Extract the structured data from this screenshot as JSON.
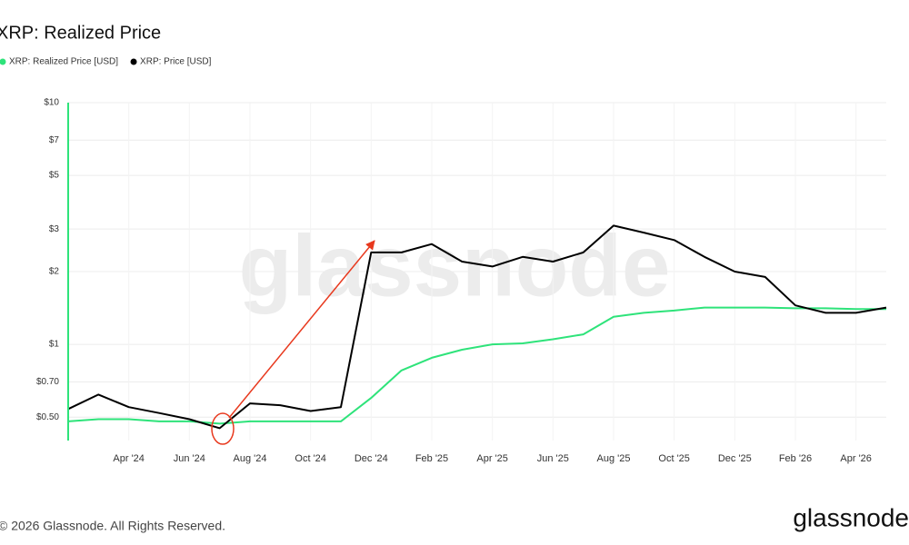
{
  "chart_data": {
    "type": "line",
    "title": "XRP: Realized Price",
    "x": [
      "2024-02",
      "2024-03",
      "2024-04",
      "2024-05",
      "2024-06",
      "2024-07",
      "2024-08",
      "2024-09",
      "2024-10",
      "2024-11",
      "2024-12",
      "2025-01",
      "2025-02",
      "2025-03",
      "2025-04",
      "2025-05",
      "2025-06",
      "2025-07",
      "2025-08",
      "2025-09",
      "2025-10",
      "2025-11",
      "2025-12",
      "2026-01",
      "2026-02",
      "2026-03",
      "2026-04",
      "2026-05"
    ],
    "series": [
      {
        "name": "XRP: Realized Price [USD]",
        "color": "#2ee37a",
        "values": [
          0.48,
          0.49,
          0.49,
          0.48,
          0.48,
          0.47,
          0.48,
          0.48,
          0.48,
          0.48,
          0.6,
          0.78,
          0.88,
          0.95,
          1.0,
          1.01,
          1.05,
          1.1,
          1.3,
          1.35,
          1.38,
          1.42,
          1.42,
          1.42,
          1.41,
          1.41,
          1.4,
          1.4
        ]
      },
      {
        "name": "XRP: Price [USD]",
        "color": "#000000",
        "values": [
          0.54,
          0.62,
          0.55,
          0.52,
          0.49,
          0.45,
          0.57,
          0.56,
          0.53,
          0.55,
          2.4,
          2.4,
          2.6,
          2.2,
          2.1,
          2.3,
          2.2,
          2.4,
          3.1,
          2.9,
          2.7,
          2.3,
          2.0,
          1.9,
          1.45,
          1.35,
          1.35,
          1.42
        ]
      }
    ],
    "xlim": [
      "2024-02",
      "2026-05"
    ],
    "xticks": [
      {
        "value": "2024-04",
        "label": "Apr '24"
      },
      {
        "value": "2024-06",
        "label": "Jun '24"
      },
      {
        "value": "2024-08",
        "label": "Aug '24"
      },
      {
        "value": "2024-10",
        "label": "Oct '24"
      },
      {
        "value": "2024-12",
        "label": "Dec '24"
      },
      {
        "value": "2025-02",
        "label": "Feb '25"
      },
      {
        "value": "2025-04",
        "label": "Apr '25"
      },
      {
        "value": "2025-06",
        "label": "Jun '25"
      },
      {
        "value": "2025-08",
        "label": "Aug '25"
      },
      {
        "value": "2025-10",
        "label": "Oct '25"
      },
      {
        "value": "2025-12",
        "label": "Dec '25"
      },
      {
        "value": "2026-02",
        "label": "Feb '26"
      },
      {
        "value": "2026-04",
        "label": "Apr '26"
      }
    ],
    "ylim": [
      0.4,
      10
    ],
    "yticks": [
      {
        "value": 0.5,
        "label": "$0.50"
      },
      {
        "value": 0.7,
        "label": "$0.70"
      },
      {
        "value": 1,
        "label": "$1"
      },
      {
        "value": 2,
        "label": "$2"
      },
      {
        "value": 3,
        "label": "$3"
      },
      {
        "value": 5,
        "label": "$5"
      },
      {
        "value": 7,
        "label": "$7"
      },
      {
        "value": 10,
        "label": "$10"
      }
    ],
    "log_y": true,
    "grid": true,
    "legend": "top-left",
    "watermark": "glassnode",
    "footer": "© 2026 Glassnode. All Rights Reserved.",
    "logo": "glassnode"
  }
}
